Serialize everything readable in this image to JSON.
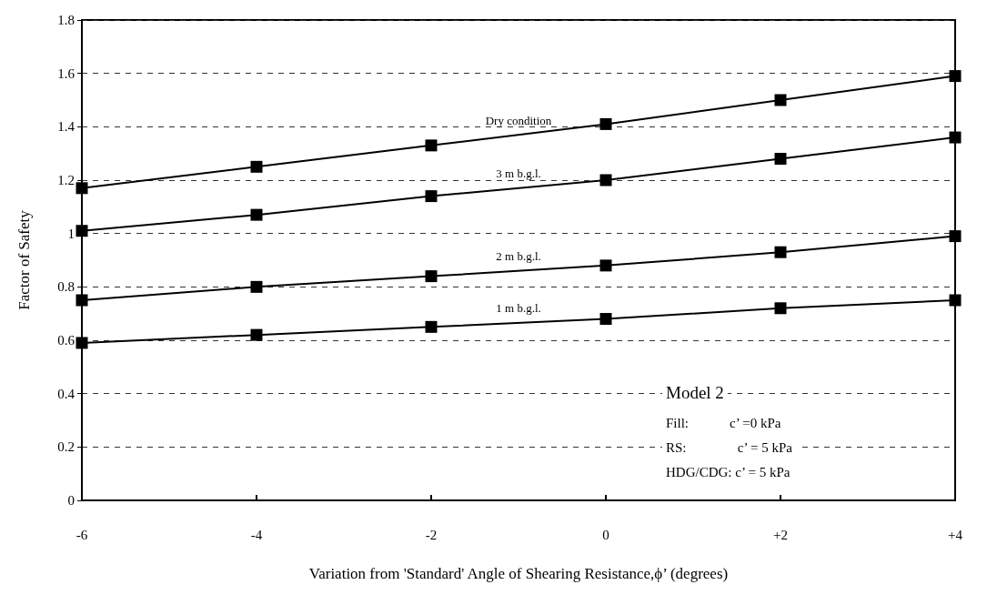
{
  "chart_data": {
    "type": "line",
    "xlabel": "Variation from 'Standard' Angle of Shearing Resistance,ϕ’ (degrees)",
    "ylabel": "Factor of Safety",
    "x": [
      -6,
      -4,
      -2,
      0,
      2,
      4
    ],
    "series": [
      {
        "name": "Dry condition",
        "color": "#000000",
        "values": [
          1.17,
          1.25,
          1.33,
          1.41,
          1.5,
          1.59
        ]
      },
      {
        "name": "3 m b.g.l.",
        "color": "#000000",
        "values": [
          1.01,
          1.07,
          1.14,
          1.2,
          1.28,
          1.36
        ]
      },
      {
        "name": "2 m b.g.l.",
        "color": "#000000",
        "values": [
          0.75,
          0.8,
          0.84,
          0.88,
          0.93,
          0.99
        ]
      },
      {
        "name": "1 m b.g.l.",
        "color": "#000000",
        "values": [
          0.59,
          0.62,
          0.65,
          0.68,
          0.72,
          0.75
        ]
      }
    ],
    "xlim": [
      -6,
      4
    ],
    "xticks": [
      -6,
      -4,
      -2,
      0,
      {
        "value": 2,
        "label": "+2"
      },
      {
        "value": 4,
        "label": "+4"
      }
    ],
    "ylim": [
      0,
      1.8
    ],
    "yticks": [
      0,
      0.2,
      0.4,
      0.6,
      0.8,
      1,
      1.2,
      1.4,
      1.6,
      1.8
    ],
    "grid": "y",
    "legend": false,
    "marker": "square",
    "line_style": "solid",
    "annotations": [
      "Model 2",
      "Fill:            c’ =0 kPa",
      "RS:               c’ = 5 kPa",
      "HDG/CDG: c’ = 5 kPa"
    ]
  }
}
